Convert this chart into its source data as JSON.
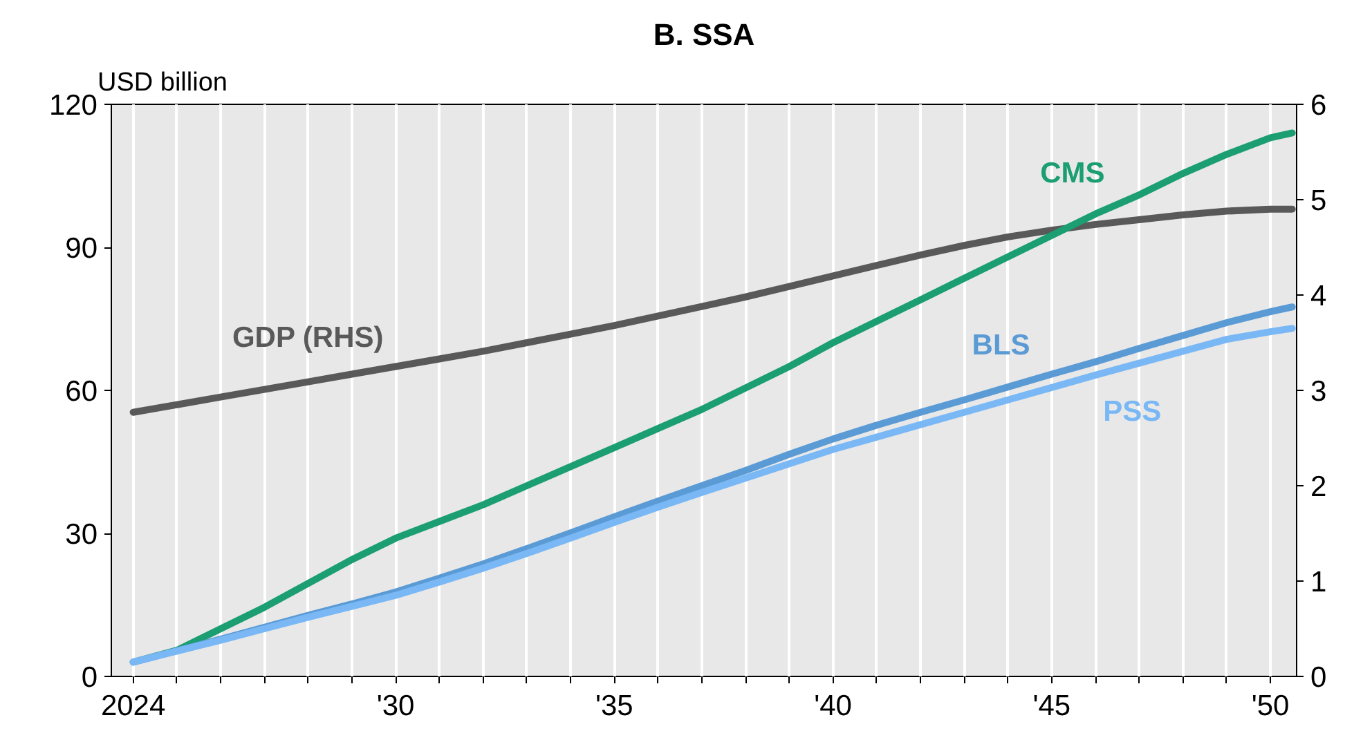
{
  "chart_data": {
    "type": "line",
    "title": "B. SSA",
    "ylabel": "USD billion",
    "x": [
      2024,
      2025,
      2026,
      2027,
      2028,
      2029,
      2030,
      2031,
      2032,
      2033,
      2034,
      2035,
      2036,
      2037,
      2038,
      2039,
      2040,
      2041,
      2042,
      2043,
      2044,
      2045,
      2046,
      2047,
      2048,
      2049,
      2050,
      2050.5
    ],
    "series": [
      {
        "name": "GDP (RHS)",
        "color": "#595959",
        "axis": "y2",
        "values": [
          2.77,
          2.85,
          2.93,
          3.01,
          3.09,
          3.17,
          3.25,
          3.33,
          3.41,
          3.5,
          3.59,
          3.68,
          3.78,
          3.88,
          3.98,
          4.09,
          4.2,
          4.31,
          4.42,
          4.52,
          4.61,
          4.68,
          4.74,
          4.79,
          4.84,
          4.88,
          4.9,
          4.9
        ]
      },
      {
        "name": "CMS",
        "color": "#1b9e72",
        "values": [
          3,
          5.5,
          10,
          14.5,
          19.5,
          24.5,
          29,
          32.5,
          36,
          40,
          44,
          48,
          52,
          56,
          60.5,
          65,
          70,
          74.5,
          79,
          83.5,
          88,
          92.5,
          97,
          101,
          105.5,
          109.5,
          113,
          114
        ]
      },
      {
        "name": "BLS",
        "color": "#5b9bd5",
        "values": [
          3,
          5.4,
          7.8,
          10.3,
          12.8,
          15.2,
          17.7,
          20.6,
          23.6,
          26.8,
          30.1,
          33.5,
          36.8,
          40,
          43.2,
          46.6,
          49.8,
          52.7,
          55.4,
          58,
          60.7,
          63.4,
          66,
          68.8,
          71.5,
          74.2,
          76.5,
          77.5
        ]
      },
      {
        "name": "PSS",
        "color": "#7ab8f5",
        "values": [
          3,
          5.3,
          7.6,
          10,
          12.4,
          14.7,
          17,
          19.8,
          22.7,
          25.8,
          29,
          32.3,
          35.5,
          38.6,
          41.6,
          44.6,
          47.6,
          50.2,
          52.8,
          55.4,
          58,
          60.6,
          63.2,
          65.7,
          68.2,
          70.7,
          72.3,
          73
        ]
      }
    ],
    "xlim": [
      2023.5,
      2050.6
    ],
    "xticks": [
      {
        "value": 2024,
        "label": "2024"
      },
      {
        "value": 2025,
        "label": null
      },
      {
        "value": 2026,
        "label": null
      },
      {
        "value": 2027,
        "label": null
      },
      {
        "value": 2028,
        "label": null
      },
      {
        "value": 2029,
        "label": null
      },
      {
        "value": 2030,
        "label": "'30"
      },
      {
        "value": 2031,
        "label": null
      },
      {
        "value": 2032,
        "label": null
      },
      {
        "value": 2033,
        "label": null
      },
      {
        "value": 2034,
        "label": null
      },
      {
        "value": 2035,
        "label": "'35"
      },
      {
        "value": 2036,
        "label": null
      },
      {
        "value": 2037,
        "label": null
      },
      {
        "value": 2038,
        "label": null
      },
      {
        "value": 2039,
        "label": null
      },
      {
        "value": 2040,
        "label": "'40"
      },
      {
        "value": 2041,
        "label": null
      },
      {
        "value": 2042,
        "label": null
      },
      {
        "value": 2043,
        "label": null
      },
      {
        "value": 2044,
        "label": null
      },
      {
        "value": 2045,
        "label": "'45"
      },
      {
        "value": 2046,
        "label": null
      },
      {
        "value": 2047,
        "label": null
      },
      {
        "value": 2048,
        "label": null
      },
      {
        "value": 2049,
        "label": null
      },
      {
        "value": 2050,
        "label": "'50"
      }
    ],
    "ylim": [
      0,
      120
    ],
    "yticks": [
      0,
      30,
      60,
      90,
      120
    ],
    "y2lim": [
      0,
      6
    ],
    "y2ticks": [
      0,
      1,
      2,
      3,
      4,
      5,
      6
    ],
    "grid": "x",
    "marker": "none",
    "line_style": "solid"
  }
}
